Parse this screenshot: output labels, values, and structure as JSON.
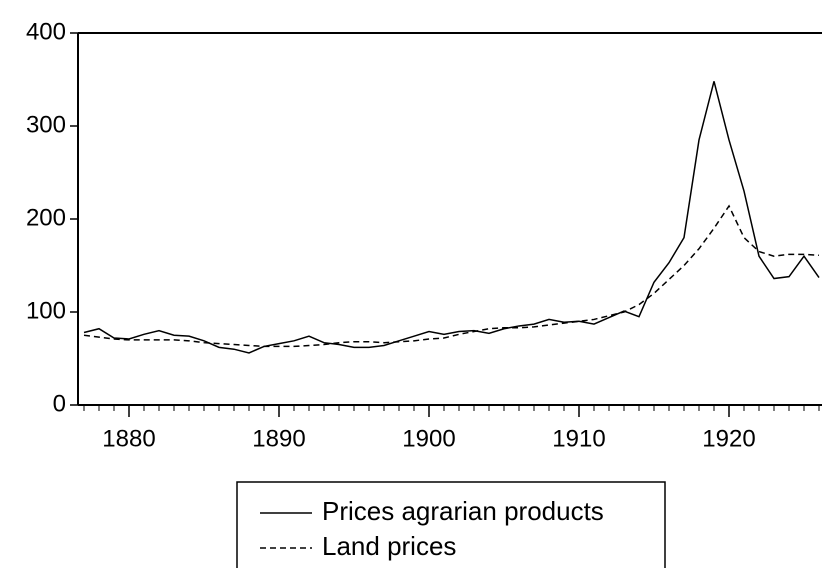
{
  "chart_data": {
    "type": "line",
    "x": [
      1877,
      1878,
      1879,
      1880,
      1881,
      1882,
      1883,
      1884,
      1885,
      1886,
      1887,
      1888,
      1889,
      1890,
      1891,
      1892,
      1893,
      1894,
      1895,
      1896,
      1897,
      1898,
      1899,
      1900,
      1901,
      1902,
      1903,
      1904,
      1905,
      1906,
      1907,
      1908,
      1909,
      1910,
      1911,
      1912,
      1913,
      1914,
      1915,
      1916,
      1917,
      1918,
      1919,
      1920,
      1921,
      1922,
      1923,
      1924,
      1925,
      1926
    ],
    "series": [
      {
        "name": "Prices agrarian products",
        "color": "#000000",
        "line_style": "solid",
        "values": [
          78,
          82,
          72,
          71,
          76,
          80,
          75,
          74,
          69,
          62,
          60,
          56,
          63,
          66,
          69,
          74,
          67,
          65,
          62,
          62,
          64,
          69,
          74,
          79,
          76,
          79,
          80,
          77,
          82,
          85,
          87,
          92,
          89,
          90,
          87,
          94,
          101,
          95,
          132,
          153,
          180,
          285,
          348,
          285,
          230,
          160,
          136,
          138,
          160,
          137
        ]
      },
      {
        "name": "Land prices",
        "color": "#000000",
        "line_style": "dashed",
        "values": [
          75,
          73,
          71,
          70,
          70,
          70,
          70,
          69,
          67,
          66,
          65,
          64,
          63,
          63,
          63,
          64,
          65,
          67,
          68,
          68,
          67,
          68,
          69,
          71,
          72,
          76,
          79,
          82,
          83,
          83,
          84,
          86,
          88,
          90,
          92,
          96,
          100,
          108,
          120,
          135,
          150,
          168,
          190,
          214,
          180,
          165,
          160,
          162,
          162,
          161
        ]
      }
    ],
    "xlim": [
      1876.6,
      1926.2
    ],
    "xticks": [
      1880,
      1890,
      1900,
      1910,
      1920
    ],
    "ylim": [
      0,
      400
    ],
    "yticks": [
      0,
      100,
      200,
      300,
      400
    ],
    "grid": false,
    "legend": "bottom"
  }
}
